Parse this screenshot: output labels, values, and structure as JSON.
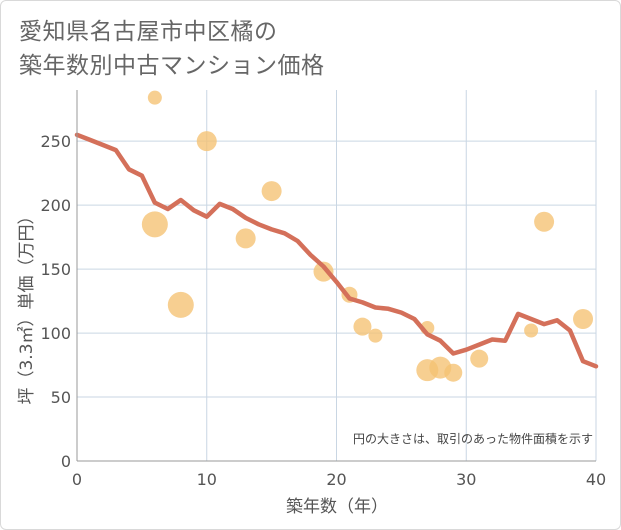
{
  "title": {
    "line1": "愛知県名古屋市中区橘の",
    "line2": "築年数別中古マンション価格"
  },
  "note": "円の大きさは、取引のあった物件面積を示す",
  "colors": {
    "line": "#d4705a",
    "bubble": "#f5c272",
    "grid": "#c9d6e3",
    "axis": "#999999"
  },
  "chart_data": {
    "type": "scatter",
    "xlabel": "築年数（年）",
    "ylabel": "坪（3.3㎡）単価（万円）",
    "xlim": [
      0,
      40
    ],
    "ylim": [
      0,
      290
    ],
    "xticks": [
      {
        "value": 0,
        "label": "0"
      },
      {
        "value": 10,
        "label": "10"
      },
      {
        "value": 20,
        "label": "20"
      },
      {
        "value": 30,
        "label": "30"
      },
      {
        "value": 40,
        "label": "40"
      }
    ],
    "yticks": [
      {
        "value": 0,
        "label": "0"
      },
      {
        "value": 50,
        "label": "50"
      },
      {
        "value": 100,
        "label": "100"
      },
      {
        "value": 150,
        "label": "150"
      },
      {
        "value": 200,
        "label": "200"
      },
      {
        "value": 250,
        "label": "250"
      }
    ],
    "bubbles": [
      {
        "x": 6,
        "y": 284,
        "size": 7
      },
      {
        "x": 6,
        "y": 185,
        "size": 13
      },
      {
        "x": 8,
        "y": 122,
        "size": 13
      },
      {
        "x": 10,
        "y": 250,
        "size": 10
      },
      {
        "x": 13,
        "y": 174,
        "size": 10
      },
      {
        "x": 15,
        "y": 211,
        "size": 10
      },
      {
        "x": 19,
        "y": 148,
        "size": 10
      },
      {
        "x": 21,
        "y": 130,
        "size": 8
      },
      {
        "x": 22,
        "y": 105,
        "size": 9
      },
      {
        "x": 23,
        "y": 98,
        "size": 7
      },
      {
        "x": 27,
        "y": 104,
        "size": 7
      },
      {
        "x": 27,
        "y": 71,
        "size": 11
      },
      {
        "x": 28,
        "y": 73,
        "size": 11
      },
      {
        "x": 29,
        "y": 69,
        "size": 9
      },
      {
        "x": 31,
        "y": 80,
        "size": 9
      },
      {
        "x": 35,
        "y": 102,
        "size": 7
      },
      {
        "x": 36,
        "y": 187,
        "size": 10
      },
      {
        "x": 39,
        "y": 111,
        "size": 10
      }
    ],
    "line": [
      [
        0,
        255
      ],
      [
        1,
        251
      ],
      [
        2,
        247
      ],
      [
        3,
        243
      ],
      [
        4,
        228
      ],
      [
        5,
        223
      ],
      [
        6,
        202
      ],
      [
        7,
        197
      ],
      [
        8,
        204
      ],
      [
        9,
        196
      ],
      [
        10,
        191
      ],
      [
        11,
        201
      ],
      [
        12,
        197
      ],
      [
        13,
        190
      ],
      [
        14,
        185
      ],
      [
        15,
        181
      ],
      [
        16,
        178
      ],
      [
        17,
        172
      ],
      [
        18,
        161
      ],
      [
        19,
        152
      ],
      [
        20,
        140
      ],
      [
        21,
        127
      ],
      [
        22,
        124
      ],
      [
        23,
        120
      ],
      [
        24,
        119
      ],
      [
        25,
        116
      ],
      [
        26,
        111
      ],
      [
        27,
        99
      ],
      [
        28,
        94
      ],
      [
        29,
        84
      ],
      [
        30,
        87
      ],
      [
        31,
        91
      ],
      [
        32,
        95
      ],
      [
        33,
        94
      ],
      [
        34,
        115
      ],
      [
        35,
        111
      ],
      [
        36,
        107
      ],
      [
        37,
        110
      ],
      [
        38,
        102
      ],
      [
        39,
        78
      ],
      [
        40,
        74
      ]
    ]
  }
}
